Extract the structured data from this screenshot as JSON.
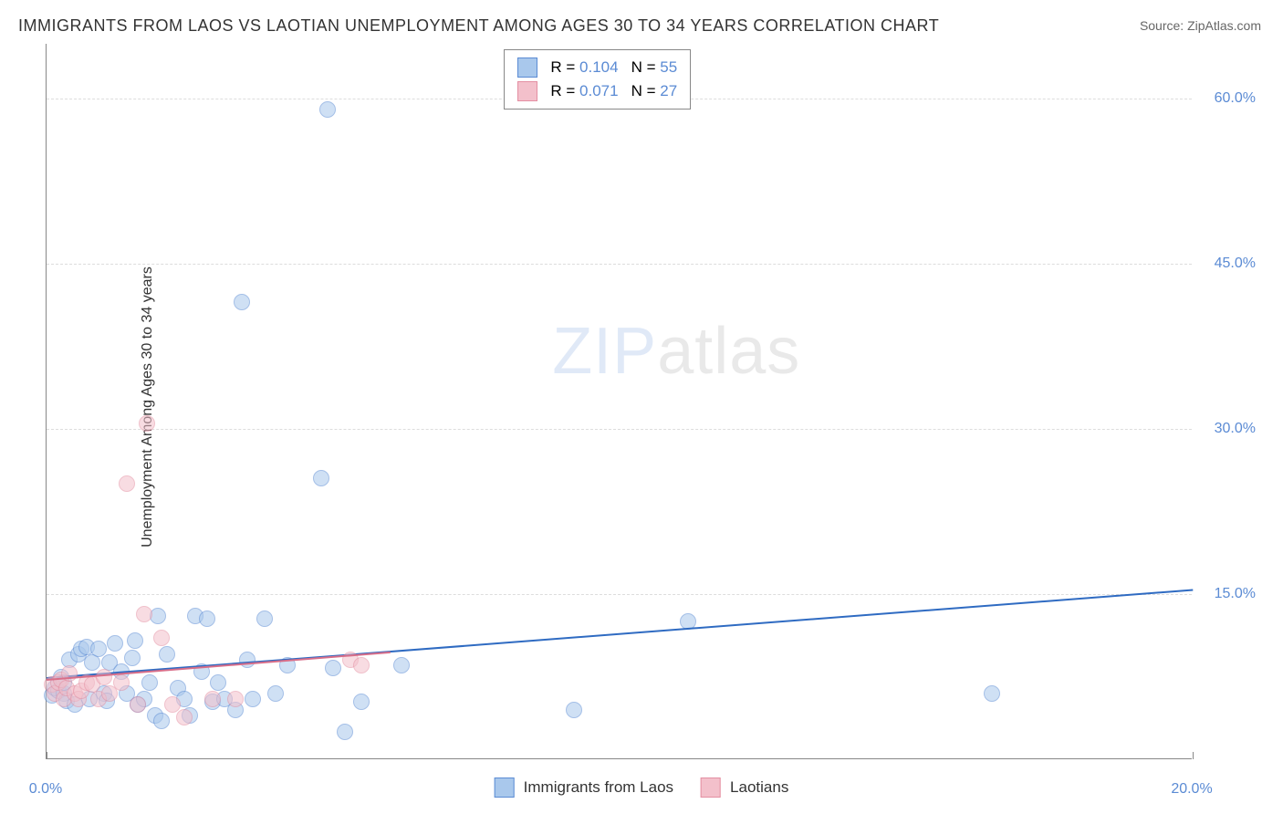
{
  "title": "IMMIGRANTS FROM LAOS VS LAOTIAN UNEMPLOYMENT AMONG AGES 30 TO 34 YEARS CORRELATION CHART",
  "source_label": "Source: ",
  "source_name": "ZipAtlas.com",
  "y_axis_label": "Unemployment Among Ages 30 to 34 years",
  "watermark": {
    "part1": "ZIP",
    "part2": "atlas"
  },
  "chart": {
    "type": "scatter",
    "xlim": [
      0,
      20
    ],
    "ylim": [
      0,
      65
    ],
    "x_ticks": [
      {
        "value": 0,
        "label": "0.0%"
      },
      {
        "value": 20,
        "label": "20.0%"
      }
    ],
    "y_ticks": [
      {
        "value": 15,
        "label": "15.0%"
      },
      {
        "value": 30,
        "label": "30.0%"
      },
      {
        "value": 45,
        "label": "45.0%"
      },
      {
        "value": 60,
        "label": "60.0%"
      }
    ],
    "grid_color": "#dddddd",
    "background_color": "#ffffff",
    "marker_radius": 9,
    "marker_opacity": 0.55,
    "series": [
      {
        "name": "Immigrants from Laos",
        "color_fill": "#a9c8ec",
        "color_stroke": "#5b8bd4",
        "r_value": "0.104",
        "n_value": "55",
        "trend": {
          "x1": 0,
          "y1": 7.5,
          "x2": 20,
          "y2": 15.5,
          "color": "#2f6bc2",
          "width": 2
        },
        "points": [
          [
            0.1,
            5.8
          ],
          [
            0.15,
            6.5
          ],
          [
            0.2,
            6.2
          ],
          [
            0.25,
            7.5
          ],
          [
            0.3,
            6.0
          ],
          [
            0.3,
            7.0
          ],
          [
            0.35,
            5.3
          ],
          [
            0.4,
            9.0
          ],
          [
            0.5,
            5.0
          ],
          [
            0.55,
            9.5
          ],
          [
            0.6,
            10.0
          ],
          [
            0.7,
            10.2
          ],
          [
            0.75,
            5.5
          ],
          [
            0.8,
            8.8
          ],
          [
            0.9,
            10.0
          ],
          [
            1.0,
            6.0
          ],
          [
            1.05,
            5.3
          ],
          [
            1.1,
            8.8
          ],
          [
            1.2,
            10.5
          ],
          [
            1.3,
            8.0
          ],
          [
            1.4,
            6.0
          ],
          [
            1.5,
            9.2
          ],
          [
            1.55,
            10.8
          ],
          [
            1.6,
            5.0
          ],
          [
            1.7,
            5.5
          ],
          [
            1.8,
            7.0
          ],
          [
            1.9,
            4.0
          ],
          [
            1.95,
            13.0
          ],
          [
            2.0,
            3.5
          ],
          [
            2.1,
            9.5
          ],
          [
            2.3,
            6.5
          ],
          [
            2.4,
            5.5
          ],
          [
            2.5,
            4.0
          ],
          [
            2.6,
            13.0
          ],
          [
            2.7,
            8.0
          ],
          [
            2.8,
            12.8
          ],
          [
            2.9,
            5.2
          ],
          [
            3.0,
            7.0
          ],
          [
            3.1,
            5.5
          ],
          [
            3.3,
            4.5
          ],
          [
            3.4,
            41.5
          ],
          [
            3.5,
            9.0
          ],
          [
            3.6,
            5.5
          ],
          [
            3.8,
            12.8
          ],
          [
            4.0,
            6.0
          ],
          [
            4.2,
            8.5
          ],
          [
            4.8,
            25.5
          ],
          [
            4.9,
            59.0
          ],
          [
            5.0,
            8.3
          ],
          [
            5.2,
            2.5
          ],
          [
            5.5,
            5.2
          ],
          [
            6.2,
            8.5
          ],
          [
            9.2,
            4.5
          ],
          [
            11.2,
            12.5
          ],
          [
            16.5,
            6.0
          ]
        ]
      },
      {
        "name": "Laotians",
        "color_fill": "#f3c0cb",
        "color_stroke": "#e48fa2",
        "r_value": "0.071",
        "n_value": "27",
        "trend": {
          "x1": 0,
          "y1": 7.3,
          "x2": 6.0,
          "y2": 9.8,
          "color": "#d86e89",
          "width": 2
        },
        "points": [
          [
            0.1,
            6.8
          ],
          [
            0.15,
            6.0
          ],
          [
            0.2,
            7.0
          ],
          [
            0.25,
            7.2
          ],
          [
            0.3,
            5.5
          ],
          [
            0.35,
            6.5
          ],
          [
            0.4,
            7.8
          ],
          [
            0.5,
            6.0
          ],
          [
            0.55,
            5.5
          ],
          [
            0.6,
            6.2
          ],
          [
            0.7,
            7.0
          ],
          [
            0.8,
            6.8
          ],
          [
            0.9,
            5.5
          ],
          [
            1.0,
            7.5
          ],
          [
            1.1,
            6.0
          ],
          [
            1.3,
            7.0
          ],
          [
            1.4,
            25.0
          ],
          [
            1.6,
            5.0
          ],
          [
            1.7,
            13.2
          ],
          [
            1.75,
            30.5
          ],
          [
            2.0,
            11.0
          ],
          [
            2.2,
            5.0
          ],
          [
            2.4,
            3.8
          ],
          [
            2.9,
            5.5
          ],
          [
            3.3,
            5.5
          ],
          [
            5.3,
            9.0
          ],
          [
            5.5,
            8.5
          ]
        ]
      }
    ]
  },
  "legend_top": {
    "r_label": "R =",
    "n_label": "N ="
  }
}
